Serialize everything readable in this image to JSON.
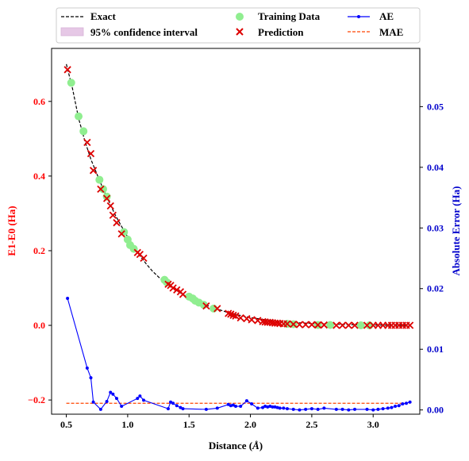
{
  "chart_data": {
    "type": "line",
    "x_axis": {
      "label_prefix": "Distance (",
      "label_symbol": "Å",
      "label_suffix": ")",
      "range": [
        0.38,
        3.38
      ],
      "ticks": [
        0.5,
        1.0,
        1.5,
        2.0,
        2.5,
        3.0
      ],
      "tick_labels": [
        "0.5",
        "1.0",
        "1.5",
        "2.0",
        "2.5",
        "3.0"
      ]
    },
    "y_left": {
      "label": "E1-E0 (Ha)",
      "color": "#ff0000",
      "range": [
        -0.238,
        0.742
      ],
      "ticks": [
        -0.2,
        0.0,
        0.2,
        0.4,
        0.6
      ],
      "tick_labels": [
        "−0.2",
        "0.0",
        "0.2",
        "0.4",
        "0.6"
      ]
    },
    "y_right": {
      "label": "Absolute Error (Ha)",
      "color": "#0000cc",
      "range": [
        -0.0007,
        0.0596
      ],
      "ticks": [
        0.0,
        0.01,
        0.02,
        0.03,
        0.04,
        0.05
      ],
      "tick_labels": [
        "0.00",
        "0.01",
        "0.02",
        "0.03",
        "0.04",
        "0.05"
      ]
    },
    "legend": {
      "placement": "top (above plot)",
      "items": [
        {
          "label": "Exact",
          "kind": "dashed-line",
          "color": "#000000"
        },
        {
          "label": "Training Data",
          "kind": "circle",
          "color": "#90ee90"
        },
        {
          "label": "AE",
          "kind": "line-dot",
          "color": "#0000ff"
        },
        {
          "label": "95% confidence interval",
          "kind": "patch",
          "color": "#e6c8e6"
        },
        {
          "label": "Prediction",
          "kind": "x",
          "color": "#dd0000"
        },
        {
          "label": "MAE",
          "kind": "dashed-line",
          "color": "#ff4500"
        }
      ]
    },
    "series": [
      {
        "name": "Exact",
        "axis": "left",
        "color": "#000000",
        "style": "dashed",
        "x": [
          0.5,
          0.55,
          0.6,
          0.65,
          0.7,
          0.75,
          0.8,
          0.85,
          0.9,
          0.95,
          1.0,
          1.05,
          1.1,
          1.15,
          1.2,
          1.25,
          1.3,
          1.35,
          1.4,
          1.45,
          1.5,
          1.6,
          1.7,
          1.8,
          1.9,
          2.0,
          2.1,
          2.2,
          2.3,
          2.4,
          2.5,
          2.6,
          2.8,
          3.0,
          3.2,
          3.3
        ],
        "y": [
          0.7,
          0.635,
          0.555,
          0.495,
          0.445,
          0.405,
          0.365,
          0.33,
          0.295,
          0.265,
          0.237,
          0.21,
          0.186,
          0.165,
          0.146,
          0.13,
          0.116,
          0.104,
          0.093,
          0.083,
          0.074,
          0.059,
          0.047,
          0.036,
          0.028,
          0.021,
          0.016,
          0.012,
          0.009,
          0.007,
          0.005,
          0.004,
          0.002,
          0.001,
          0.0,
          0.0
        ]
      },
      {
        "name": "Training Data",
        "axis": "left",
        "color": "#90ee90",
        "style": "scatter-circle",
        "x": [
          0.54,
          0.6,
          0.64,
          0.77,
          0.8,
          0.83,
          0.97,
          1.0,
          1.02,
          1.05,
          1.3,
          1.32,
          1.5,
          1.53,
          1.55,
          1.58,
          1.62,
          1.7,
          2.3,
          2.35,
          2.55,
          2.65,
          2.9,
          2.97
        ],
        "y": [
          0.65,
          0.56,
          0.52,
          0.39,
          0.365,
          0.345,
          0.25,
          0.23,
          0.215,
          0.205,
          0.122,
          0.115,
          0.077,
          0.072,
          0.066,
          0.061,
          0.055,
          0.045,
          0.004,
          0.003,
          0.001,
          0.001,
          0.0,
          0.0
        ]
      },
      {
        "name": "Prediction",
        "axis": "left",
        "color": "#dd0000",
        "style": "scatter-x",
        "x": [
          0.51,
          0.67,
          0.7,
          0.72,
          0.78,
          0.83,
          0.86,
          0.88,
          0.91,
          0.95,
          1.08,
          1.1,
          1.13,
          1.33,
          1.35,
          1.37,
          1.4,
          1.43,
          1.45,
          1.64,
          1.73,
          1.82,
          1.84,
          1.86,
          1.88,
          1.92,
          1.97,
          2.01,
          2.06,
          2.1,
          2.12,
          2.14,
          2.16,
          2.18,
          2.2,
          2.22,
          2.24,
          2.27,
          2.3,
          2.35,
          2.4,
          2.45,
          2.5,
          2.55,
          2.6,
          2.7,
          2.75,
          2.8,
          2.85,
          2.95,
          3.0,
          3.04,
          3.08,
          3.12,
          3.15,
          3.18,
          3.21,
          3.24,
          3.27,
          3.3
        ],
        "y": [
          0.685,
          0.49,
          0.46,
          0.415,
          0.365,
          0.34,
          0.32,
          0.295,
          0.275,
          0.245,
          0.195,
          0.19,
          0.18,
          0.11,
          0.107,
          0.1,
          0.095,
          0.09,
          0.083,
          0.052,
          0.045,
          0.032,
          0.03,
          0.027,
          0.025,
          0.02,
          0.018,
          0.015,
          0.013,
          0.01,
          0.009,
          0.008,
          0.008,
          0.007,
          0.006,
          0.006,
          0.005,
          0.004,
          0.004,
          0.003,
          0.002,
          0.002,
          0.002,
          0.001,
          0.001,
          0.0,
          0.0,
          0.0,
          0.0,
          0.0,
          0.0,
          0.0,
          0.0,
          0.0,
          0.0,
          0.0,
          0.0,
          0.0,
          0.0,
          0.0
        ]
      },
      {
        "name": "AE",
        "axis": "right",
        "color": "#0000ff",
        "style": "line-dot",
        "x": [
          0.51,
          0.67,
          0.7,
          0.72,
          0.78,
          0.83,
          0.86,
          0.88,
          0.91,
          0.95,
          1.08,
          1.1,
          1.13,
          1.33,
          1.35,
          1.37,
          1.4,
          1.43,
          1.45,
          1.64,
          1.73,
          1.82,
          1.84,
          1.86,
          1.88,
          1.92,
          1.97,
          2.01,
          2.06,
          2.1,
          2.12,
          2.14,
          2.16,
          2.18,
          2.2,
          2.22,
          2.24,
          2.27,
          2.3,
          2.35,
          2.4,
          2.45,
          2.5,
          2.55,
          2.6,
          2.7,
          2.75,
          2.8,
          2.85,
          2.95,
          3.0,
          3.04,
          3.08,
          3.12,
          3.15,
          3.18,
          3.21,
          3.24,
          3.27,
          3.3
        ],
        "y": [
          0.0184,
          0.0069,
          0.0053,
          0.0013,
          0.0001,
          0.0014,
          0.0029,
          0.0026,
          0.0019,
          0.0006,
          0.0019,
          0.0023,
          0.0016,
          0.0002,
          0.0013,
          0.0011,
          0.0007,
          0.0004,
          0.0002,
          0.0001,
          0.0003,
          0.0009,
          0.0007,
          0.0008,
          0.0006,
          0.0006,
          0.0015,
          0.001,
          0.0003,
          0.0004,
          0.0006,
          0.0005,
          0.0006,
          0.0005,
          0.0005,
          0.0004,
          0.0003,
          0.0003,
          0.0002,
          0.0001,
          0.0,
          0.0001,
          0.0002,
          0.0001,
          0.0003,
          0.0001,
          0.0001,
          0.0,
          0.0001,
          0.0001,
          0.0,
          0.0001,
          0.0002,
          0.0003,
          0.0004,
          0.0006,
          0.0007,
          0.001,
          0.0011,
          0.0013
        ]
      },
      {
        "name": "MAE",
        "axis": "right",
        "color": "#ff4500",
        "style": "dashed",
        "x": [
          0.5,
          3.3
        ],
        "y": [
          0.0011,
          0.0011
        ]
      }
    ]
  }
}
